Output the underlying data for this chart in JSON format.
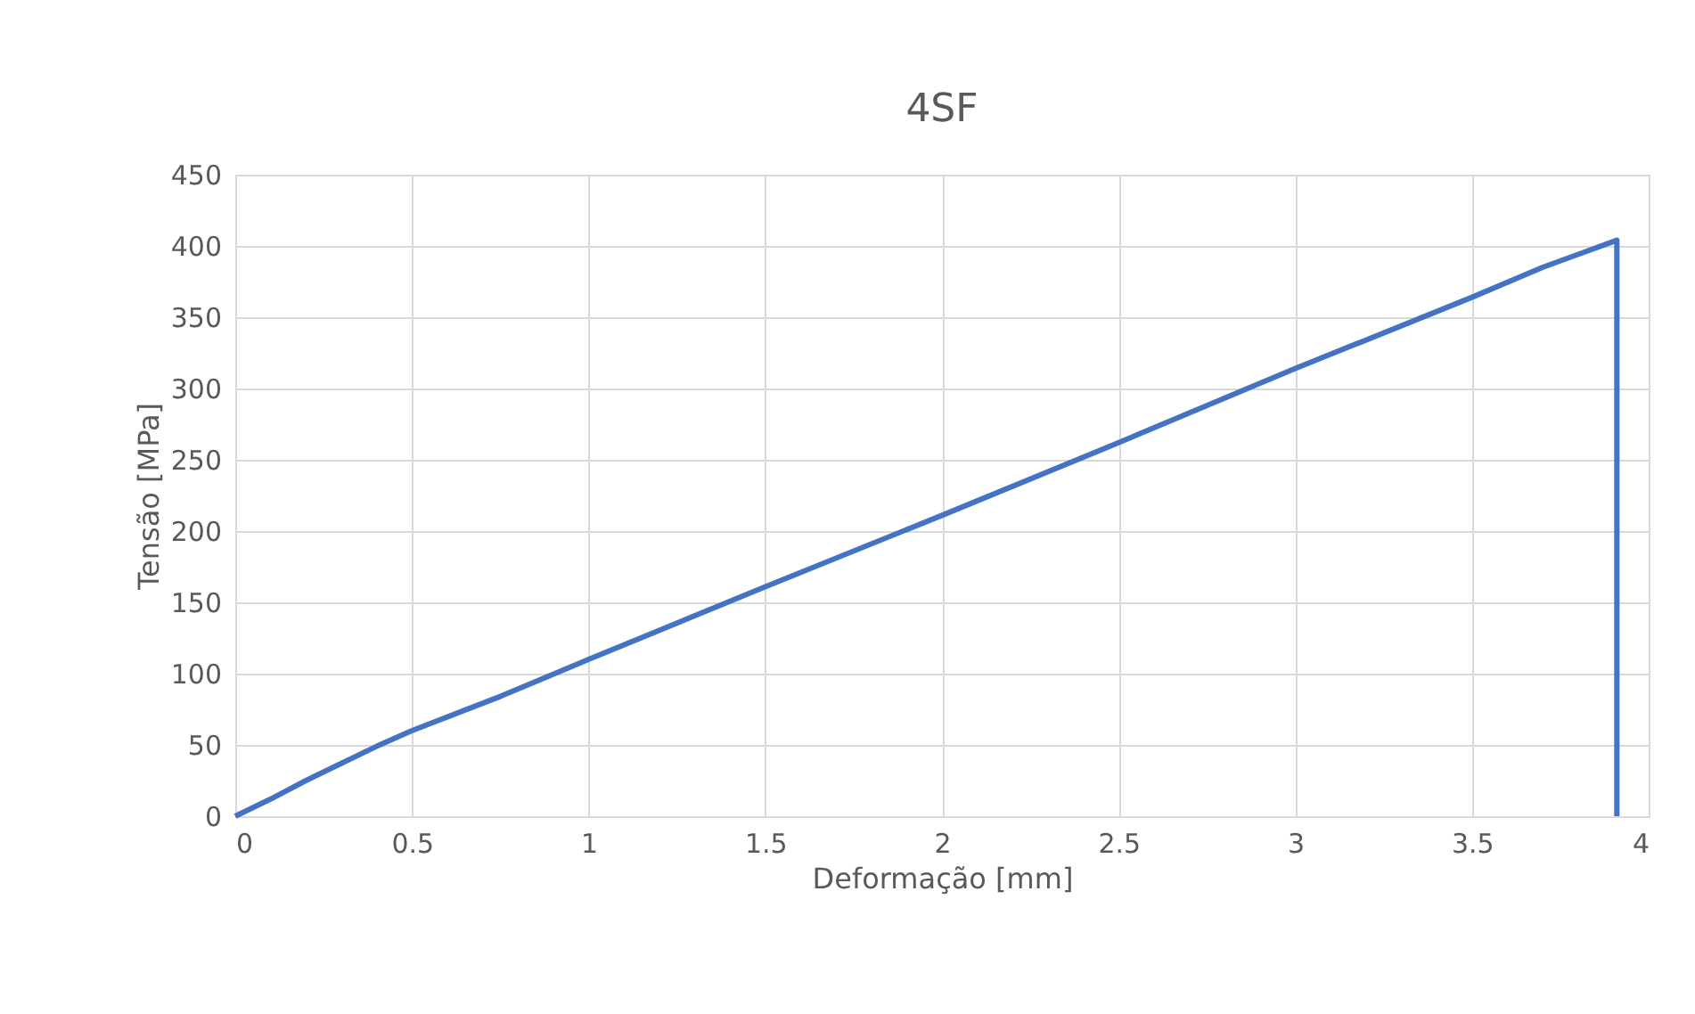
{
  "chart_data": {
    "type": "line",
    "title": "4SF",
    "xlabel": "Deformação [mm]",
    "ylabel": "Tensão [MPa]",
    "series": [
      {
        "color": "#4472c4",
        "x": [
          0,
          0.1,
          0.2,
          0.3,
          0.4,
          0.5,
          0.75,
          1,
          1.5,
          2,
          2.5,
          3,
          3.5,
          3.7,
          3.91,
          3.91
        ],
        "values": [
          0,
          12,
          25,
          37,
          49,
          60,
          84,
          110,
          161,
          211,
          262,
          314,
          364,
          385,
          404,
          0
        ]
      }
    ],
    "xlim": [
      0,
      4
    ],
    "xticks": [
      0,
      0.5,
      1,
      1.5,
      2,
      2.5,
      3,
      3.5,
      4
    ],
    "ylim": [
      0,
      450
    ],
    "yticks": [
      0,
      50,
      100,
      150,
      200,
      250,
      300,
      350,
      400,
      450
    ],
    "grid": true,
    "marker": "none",
    "line_style": "solid"
  }
}
